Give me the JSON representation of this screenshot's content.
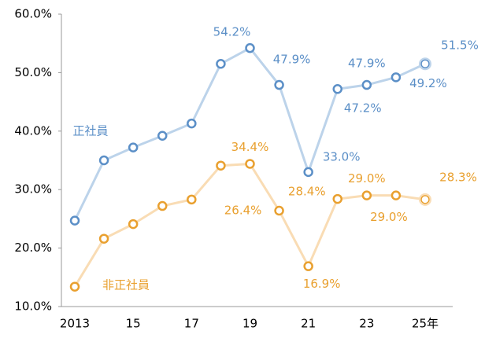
{
  "chart_data": {
    "type": "line",
    "categories": [
      "2013",
      null,
      "15",
      null,
      "17",
      null,
      "19",
      null,
      "21",
      null,
      "23",
      null,
      "25年"
    ],
    "ylim": [
      10,
      60
    ],
    "yticks": [
      {
        "value": 10,
        "label": "10.0%"
      },
      {
        "value": 20,
        "label": "20.0%"
      },
      {
        "value": 30,
        "label": "30.0%"
      },
      {
        "value": 40,
        "label": "40.0%"
      },
      {
        "value": 50,
        "label": "50.0%"
      },
      {
        "value": 60,
        "label": "60.0%"
      }
    ],
    "grid": false,
    "series": [
      {
        "name": "正社員",
        "color": "#5b8fc7",
        "line_color": "#bcd3ea",
        "values": [
          24.7,
          35.0,
          37.2,
          39.2,
          41.3,
          51.5,
          54.2,
          47.9,
          33.0,
          47.2,
          47.9,
          49.2,
          51.5
        ],
        "value_labels": [
          null,
          null,
          null,
          null,
          null,
          null,
          "54.2%",
          "47.9%",
          "33.0%",
          "47.2%",
          "47.9%",
          "49.2%",
          "51.5%"
        ]
      },
      {
        "name": "非正社員",
        "color": "#e9a02f",
        "line_color": "#f9dcb4",
        "values": [
          13.4,
          21.6,
          24.1,
          27.2,
          28.3,
          34.1,
          34.4,
          26.4,
          16.9,
          28.4,
          29.0,
          29.0,
          28.3
        ],
        "value_labels": [
          null,
          null,
          null,
          null,
          null,
          null,
          "34.4%",
          "26.4%",
          "16.9%",
          "28.4%",
          "29.0%",
          "29.0%",
          "28.3%"
        ]
      }
    ]
  }
}
